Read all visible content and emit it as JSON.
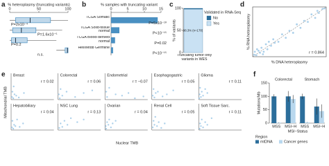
{
  "chart_data": [
    {
      "panel": "a",
      "type": "box",
      "title": "% heteroplasmy (truncating variants)",
      "xlim": [
        0,
        100
      ],
      "xticks": [
        0,
        50,
        100
      ],
      "color": "#4a90c2",
      "boxes": [
        {
          "low": 0,
          "q1": 10,
          "median": 35,
          "q3": 70,
          "high": 100
        },
        {
          "low": 0,
          "q1": 5,
          "median": 20,
          "q3": 45,
          "high": 90
        },
        {
          "low": 0,
          "q1": 3,
          "median": 10,
          "q3": 30,
          "high": 80
        },
        {
          "low": 80,
          "q1": 95,
          "median": 99,
          "q3": 100,
          "high": 100
        }
      ],
      "annotations": [
        "P=2x10⁻⁴",
        "P=1.6x10⁻⁵",
        "P=0.2",
        "n.s."
      ]
    },
    {
      "panel": "b",
      "type": "hbar",
      "title": "% samples with truncating variant",
      "categories": [
        "TCGA Somatic",
        "TCGA Solid-tissue normal",
        "TCGA Blood-derived normal",
        "HelixMtdb Germline"
      ],
      "values": [
        14,
        2.5,
        1.2,
        0.6
      ],
      "xlim": [
        0,
        15
      ],
      "xticks": [
        0,
        5,
        10,
        15
      ],
      "color": "#4a90c2",
      "annotations": [
        "P=5x10⁻¹⁰",
        "P<10⁻¹⁵",
        "P=0.02",
        "P<10⁻¹⁵"
      ]
    },
    {
      "panel": "c",
      "type": "stacked_bar",
      "ylabel": "% of variants",
      "categories": [
        "Truncating tumor-only variants in WES"
      ],
      "ylim": [
        0,
        100
      ],
      "yticks": [
        0,
        50,
        100
      ],
      "legend_title": "Validated in RNA-Seq",
      "series": [
        {
          "name": "Yes",
          "color": "#c9e1f3",
          "values": [
            98.3
          ],
          "value_labels": [
            "98.3% (n=178)"
          ]
        },
        {
          "name": "No",
          "color": "#2c6e9b",
          "values": [
            1.7
          ]
        }
      ]
    },
    {
      "panel": "d",
      "type": "scatter",
      "xlabel": "% DNA heteroplasmy",
      "ylabel": "% RNA heteroplasmy",
      "xlim": [
        0,
        100
      ],
      "ylim": [
        0,
        100
      ],
      "color": "#9ec8e6",
      "annotation": "r = 0.864",
      "x": [
        2,
        5,
        8,
        10,
        12,
        15,
        18,
        20,
        25,
        28,
        30,
        35,
        40,
        45,
        50,
        55,
        60,
        65,
        70,
        75,
        80,
        85,
        88,
        90,
        95,
        98,
        3,
        6,
        14,
        22
      ],
      "y": [
        4,
        3,
        12,
        8,
        18,
        10,
        25,
        15,
        22,
        35,
        28,
        30,
        45,
        38,
        52,
        48,
        65,
        58,
        72,
        70,
        85,
        78,
        92,
        88,
        96,
        97,
        10,
        15,
        5,
        30
      ]
    },
    {
      "panel": "e",
      "type": "scatter_facets",
      "xlabel": "Nuclear TMB",
      "ylabel": "Mitochondrial TMB",
      "xlim": [
        0,
        100
      ],
      "ylim": [
        0,
        100
      ],
      "color": "#9ec8e6",
      "facets": [
        {
          "title": "Breast",
          "annotation": "r = 0.02",
          "x": [
            2,
            3,
            5,
            6,
            8,
            12,
            18,
            30
          ],
          "y": [
            10,
            30,
            5,
            50,
            20,
            15,
            8,
            25
          ]
        },
        {
          "title": "Colorectal",
          "annotation": "r = 0.06",
          "x": [
            2,
            4,
            6,
            10,
            20,
            40,
            60,
            80
          ],
          "y": [
            20,
            5,
            40,
            15,
            30,
            10,
            25,
            35
          ]
        },
        {
          "title": "Endometrial",
          "annotation": "r = −0.07",
          "x": [
            3,
            5,
            10,
            25,
            40,
            55,
            70,
            90
          ],
          "y": [
            30,
            10,
            45,
            20,
            15,
            25,
            5,
            12
          ]
        },
        {
          "title": "Esophagogastric",
          "annotation": "r = 0.05",
          "x": [
            2,
            4,
            6,
            9,
            14,
            25,
            35,
            50
          ],
          "y": [
            15,
            40,
            8,
            25,
            30,
            12,
            20,
            35
          ]
        },
        {
          "title": "Glioma",
          "annotation": "r = 0.11",
          "x": [
            1,
            2,
            3,
            5,
            7,
            10,
            15,
            20
          ],
          "y": [
            5,
            20,
            45,
            10,
            30,
            15,
            40,
            25
          ]
        },
        {
          "title": "Hepatobiliary",
          "annotation": "r = 0.04",
          "x": [
            2,
            3,
            5,
            7,
            10,
            14,
            20,
            28
          ],
          "y": [
            10,
            35,
            5,
            20,
            15,
            40,
            12,
            25
          ]
        },
        {
          "title": "NSC Lung",
          "annotation": "r = 0.13",
          "x": [
            3,
            6,
            10,
            15,
            22,
            30,
            45,
            60
          ],
          "y": [
            8,
            25,
            12,
            35,
            20,
            45,
            30,
            40
          ]
        },
        {
          "title": "Ovarian",
          "annotation": "r = 0.04",
          "x": [
            2,
            3,
            5,
            8,
            10,
            14,
            18,
            25
          ],
          "y": [
            15,
            5,
            30,
            20,
            40,
            10,
            25,
            35
          ]
        },
        {
          "title": "Renal Cell",
          "annotation": "r = 0.05",
          "x": [
            2,
            4,
            6,
            8,
            12,
            16,
            22,
            30
          ],
          "y": [
            10,
            35,
            20,
            50,
            15,
            30,
            8,
            25
          ]
        },
        {
          "title": "Soft Tissue Sarc.",
          "annotation": "r = 0.11",
          "x": [
            2,
            3,
            5,
            7,
            10,
            15,
            20,
            30
          ],
          "y": [
            5,
            25,
            15,
            40,
            10,
            30,
            20,
            45
          ]
        }
      ]
    },
    {
      "panel": "f",
      "type": "grouped_bar",
      "ylabel": "Mutations/Mb",
      "xlabel": "MSI−Status",
      "facets": [
        "Colorectal",
        "Stomach"
      ],
      "categories": [
        "MSS",
        "MSI−H"
      ],
      "ylim": [
        0,
        150
      ],
      "yticks": [
        0,
        50,
        100,
        150
      ],
      "legend_title": "Region",
      "series": [
        {
          "name": "mtDNA",
          "color": "#2c6e9b",
          "values": [
            [
              100,
              100
            ],
            [
              100,
              62
            ]
          ],
          "errors": [
            [
              8,
              20
            ],
            [
              10,
              30
            ]
          ]
        },
        {
          "name": "Cancer genes",
          "color": "#b9d8ee",
          "values": [
            [
              2,
              90
            ],
            [
              3,
              45
            ]
          ],
          "errors": [
            [
              1,
              15
            ],
            [
              1,
              25
            ]
          ]
        }
      ]
    }
  ]
}
